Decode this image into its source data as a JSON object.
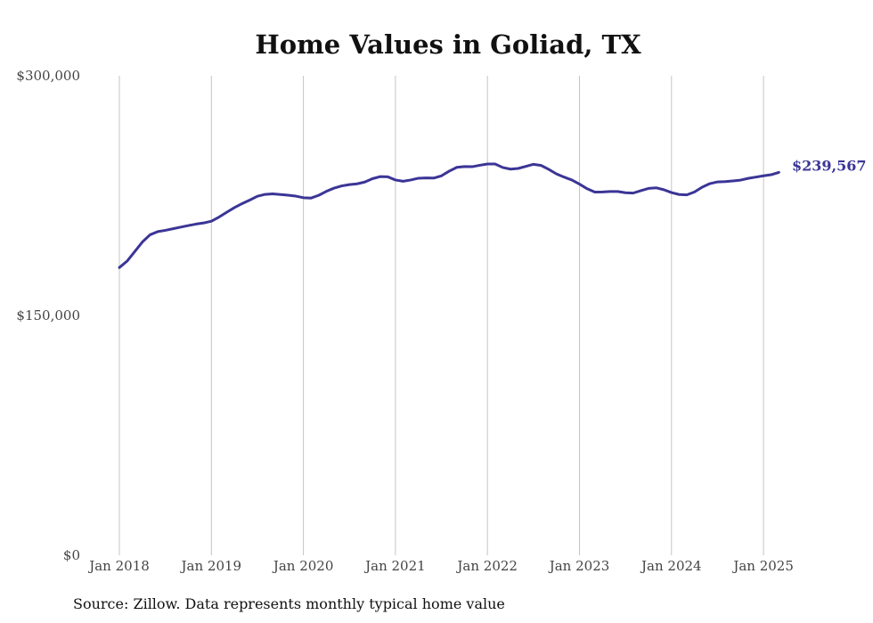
{
  "chart_data": {
    "type": "line",
    "title": "Home Values in Goliad, TX",
    "xlabel": "",
    "ylabel": "",
    "source": "Source: Zillow. Data represents monthly typical home value",
    "ylim": [
      0,
      300000
    ],
    "y_ticks": [
      {
        "value": 0,
        "label": "$0"
      },
      {
        "value": 150000,
        "label": "$150,000"
      },
      {
        "value": 300000,
        "label": "$300,000"
      }
    ],
    "x_ticks": [
      {
        "value": "2018-01",
        "label": "Jan 2018"
      },
      {
        "value": "2019-01",
        "label": "Jan 2019"
      },
      {
        "value": "2020-01",
        "label": "Jan 2020"
      },
      {
        "value": "2021-01",
        "label": "Jan 2021"
      },
      {
        "value": "2022-01",
        "label": "Jan 2022"
      },
      {
        "value": "2023-01",
        "label": "Jan 2023"
      },
      {
        "value": "2024-01",
        "label": "Jan 2024"
      },
      {
        "value": "2025-01",
        "label": "Jan 2025"
      }
    ],
    "vertical_grid": true,
    "horizontal_grid": false,
    "line_color": "#3b3596",
    "end_label": "$239,567",
    "series": [
      {
        "x": [
          "2018-01",
          "2018-02",
          "2018-03",
          "2018-04",
          "2018-05",
          "2018-06",
          "2018-07",
          "2018-08",
          "2018-09",
          "2018-10",
          "2018-11",
          "2018-12",
          "2019-01",
          "2019-02",
          "2019-03",
          "2019-04",
          "2019-05",
          "2019-06",
          "2019-07",
          "2019-08",
          "2019-09",
          "2019-10",
          "2019-11",
          "2019-12",
          "2020-01",
          "2020-02",
          "2020-03",
          "2020-04",
          "2020-05",
          "2020-06",
          "2020-07",
          "2020-08",
          "2020-09",
          "2020-10",
          "2020-11",
          "2020-12",
          "2021-01",
          "2021-02",
          "2021-03",
          "2021-04",
          "2021-05",
          "2021-06",
          "2021-07",
          "2021-08",
          "2021-09",
          "2021-10",
          "2021-11",
          "2021-12",
          "2022-01",
          "2022-02",
          "2022-03",
          "2022-04",
          "2022-05",
          "2022-06",
          "2022-07",
          "2022-08",
          "2022-09",
          "2022-10",
          "2022-11",
          "2022-12",
          "2023-01",
          "2023-02",
          "2023-03",
          "2023-04",
          "2023-05",
          "2023-06",
          "2023-07",
          "2023-08",
          "2023-09",
          "2023-10",
          "2023-11",
          "2023-12",
          "2024-01",
          "2024-02",
          "2024-03",
          "2024-04",
          "2024-05",
          "2024-06",
          "2024-07",
          "2024-08",
          "2024-09",
          "2024-10",
          "2024-11",
          "2024-12",
          "2025-01",
          "2025-02",
          "2025-03"
        ],
        "values": [
          180000,
          184000,
          190000,
          196000,
          200500,
          202500,
          203300,
          204300,
          205300,
          206300,
          207200,
          207900,
          209000,
          211600,
          214600,
          217500,
          220000,
          222200,
          224600,
          225800,
          226100,
          225700,
          225300,
          224700,
          223700,
          223500,
          225200,
          227700,
          229700,
          231100,
          231900,
          232400,
          233500,
          235600,
          236900,
          236800,
          234800,
          234000,
          234800,
          235900,
          236100,
          236000,
          237400,
          240300,
          242700,
          243200,
          243100,
          244000,
          244800,
          244800,
          242600,
          241600,
          242000,
          243300,
          244600,
          243900,
          241400,
          238600,
          236600,
          234800,
          232200,
          229300,
          227200,
          227300,
          227600,
          227600,
          226800,
          226600,
          228100,
          229500,
          229900,
          228700,
          226900,
          225700,
          225500,
          227300,
          230300,
          232500,
          233600,
          233800,
          234200,
          234700,
          235800,
          236600,
          237400,
          238100,
          239567
        ]
      }
    ]
  }
}
